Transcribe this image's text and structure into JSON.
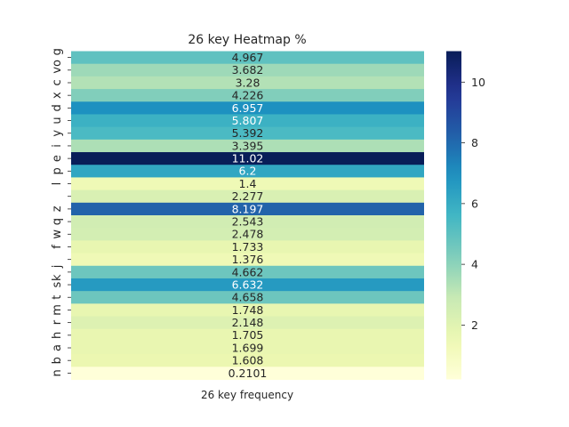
{
  "chart_data": {
    "type": "heatmap",
    "title": "26 key Heatmap %",
    "xlabel": "",
    "ylabel": "",
    "x_categories": [
      "26 key frequency"
    ],
    "y_categories": [
      "o",
      "g",
      "v",
      "c",
      "x",
      "d",
      "u",
      "y",
      "i",
      "e",
      "p",
      "l",
      "z",
      "q",
      "w",
      "f",
      "k",
      "j",
      "s",
      "t",
      "m",
      "r",
      "h",
      "a",
      "b",
      "n"
    ],
    "rows": [
      {
        "labels": [
          "o",
          "g"
        ],
        "value": 4.967,
        "label": "4.967"
      },
      {
        "labels": [
          "v"
        ],
        "value": 3.682,
        "label": "3.682"
      },
      {
        "labels": [
          "c"
        ],
        "value": 3.28,
        "label": "3.28"
      },
      {
        "labels": [
          "x"
        ],
        "value": 4.226,
        "label": "4.226"
      },
      {
        "labels": [
          "d"
        ],
        "value": 6.957,
        "label": "6.957"
      },
      {
        "labels": [
          "u"
        ],
        "value": 5.807,
        "label": "5.807"
      },
      {
        "labels": [
          "y"
        ],
        "value": 5.392,
        "label": "5.392"
      },
      {
        "labels": [
          "i"
        ],
        "value": 3.395,
        "label": "3.395"
      },
      {
        "labels": [
          "e"
        ],
        "value": 11.02,
        "label": "11.02"
      },
      {
        "labels": [
          "p"
        ],
        "value": 6.2,
        "label": "6.2"
      },
      {
        "labels": [
          "l"
        ],
        "value": 1.4,
        "label": "1.4"
      },
      {
        "labels": [],
        "value": 2.277,
        "label": "2.277"
      },
      {
        "labels": [
          "z"
        ],
        "value": 8.197,
        "label": "8.197"
      },
      {
        "labels": [
          "q"
        ],
        "value": 2.543,
        "label": "2.543"
      },
      {
        "labels": [
          "w"
        ],
        "value": 2.478,
        "label": "2.478"
      },
      {
        "labels": [
          "f"
        ],
        "value": 1.733,
        "label": "1.733"
      },
      {
        "labels": [],
        "value": 1.376,
        "label": "1.376"
      },
      {
        "labels": [
          "k",
          "j"
        ],
        "value": 4.662,
        "label": "4.662"
      },
      {
        "labels": [
          "s"
        ],
        "value": 6.632,
        "label": "6.632"
      },
      {
        "labels": [
          "t"
        ],
        "value": 4.658,
        "label": "4.658"
      },
      {
        "labels": [
          "m"
        ],
        "value": 1.748,
        "label": "1.748"
      },
      {
        "labels": [
          "r"
        ],
        "value": 2.148,
        "label": "2.148"
      },
      {
        "labels": [
          "h"
        ],
        "value": 1.705,
        "label": "1.705"
      },
      {
        "labels": [
          "a"
        ],
        "value": 1.699,
        "label": "1.699"
      },
      {
        "labels": [
          "b"
        ],
        "value": 1.608,
        "label": "1.608"
      },
      {
        "labels": [
          "n"
        ],
        "value": 0.2101,
        "label": "0.2101"
      }
    ],
    "colorbar": {
      "min": 0.2101,
      "max": 11.02,
      "ticks": [
        "2",
        "4",
        "6",
        "8",
        "10"
      ],
      "colormap": "YlGnBu"
    },
    "grid": false,
    "legend": "colorbar-right"
  }
}
